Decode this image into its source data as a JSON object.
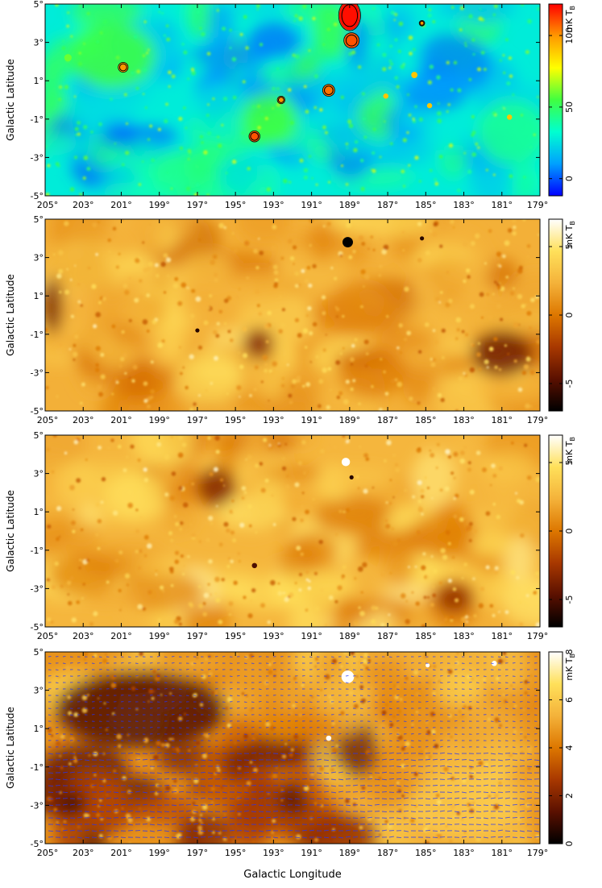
{
  "chart_data": [
    {
      "type": "heatmap",
      "colormap": "rainbow",
      "colors": [
        "#0000ff",
        "#00a0ff",
        "#00ffd0",
        "#40ff40",
        "#ffff00",
        "#ff9900",
        "#ff0000"
      ],
      "xlabel": "",
      "ylabel": "Galactic Latitude",
      "xlim": [
        205,
        179
      ],
      "ylim": [
        -5,
        5
      ],
      "x_ticks": [
        "205°",
        "203°",
        "201°",
        "199°",
        "197°",
        "195°",
        "193°",
        "191°",
        "189°",
        "187°",
        "185°",
        "183°",
        "181°",
        "179°"
      ],
      "y_ticks": [
        "-5°",
        "-3°",
        "-1°",
        "1°",
        "3°",
        "5°"
      ],
      "colorbar": {
        "label": "mK T",
        "label_sub": "B",
        "range": [
          -12,
          122
        ],
        "ticks": [
          {
            "value": 100,
            "label": "100"
          },
          {
            "value": 50,
            "label": "50"
          },
          {
            "value": 0,
            "label": "0"
          }
        ]
      },
      "sources": [
        {
          "l": 189.0,
          "b": 4.4,
          "size": 1.0,
          "value": 120
        },
        {
          "l": 188.9,
          "b": 3.1,
          "size": 0.7,
          "value": 110
        },
        {
          "l": 200.9,
          "b": 1.7,
          "size": 0.45,
          "value": 100
        },
        {
          "l": 194.0,
          "b": -1.9,
          "size": 0.5,
          "value": 110
        },
        {
          "l": 190.1,
          "b": 0.5,
          "size": 0.55,
          "value": 105
        },
        {
          "l": 192.6,
          "b": 0.0,
          "size": 0.35,
          "value": 100
        },
        {
          "l": 203.8,
          "b": 2.2,
          "size": 0.35,
          "value": 60
        },
        {
          "l": 185.2,
          "b": 4.0,
          "size": 0.25,
          "value": 100
        },
        {
          "l": 185.6,
          "b": 1.3,
          "size": 0.3,
          "value": 90
        },
        {
          "l": 184.8,
          "b": -0.3,
          "size": 0.25,
          "value": 90
        },
        {
          "l": 187.1,
          "b": 0.2,
          "size": 0.25,
          "value": 90
        },
        {
          "l": 180.6,
          "b": -0.9,
          "size": 0.25,
          "value": 90
        }
      ],
      "extended": [
        {
          "l": 201.5,
          "b": 2.3,
          "rl": 2.3,
          "rb": 1.7,
          "value": 55
        },
        {
          "l": 180.5,
          "b": -1.7,
          "rl": 1.8,
          "rb": 1.7,
          "value": 42
        },
        {
          "l": 193.2,
          "b": -1.0,
          "rl": 1.5,
          "rb": 1.4,
          "value": 55
        },
        {
          "l": 196.3,
          "b": -2.8,
          "rl": 0.8,
          "rb": 0.6,
          "value": 45
        },
        {
          "l": 204.7,
          "b": 1.0,
          "rl": 0.6,
          "rb": 1.5,
          "value": 50
        }
      ]
    },
    {
      "type": "heatmap",
      "colormap": "heat",
      "colors": [
        "#000000",
        "#5a1000",
        "#a83800",
        "#dd7700",
        "#f4b23a",
        "#ffe05a",
        "#ffffff"
      ],
      "xlabel": "",
      "ylabel": "Galactic Latitude",
      "xlim": [
        205,
        179
      ],
      "ylim": [
        -5,
        5
      ],
      "x_ticks": [
        "205°",
        "203°",
        "201°",
        "199°",
        "197°",
        "195°",
        "193°",
        "191°",
        "189°",
        "187°",
        "185°",
        "183°",
        "181°",
        "179°"
      ],
      "y_ticks": [
        "-5°",
        "-3°",
        "-1°",
        "1°",
        "3°",
        "5°"
      ],
      "colorbar": {
        "label": "mK T",
        "label_sub": "B",
        "range": [
          -7,
          7
        ],
        "ticks": [
          {
            "value": 5,
            "label": "5"
          },
          {
            "value": 0,
            "label": "0"
          },
          {
            "value": -5,
            "label": "-5"
          }
        ]
      },
      "sources": [
        {
          "l": 189.1,
          "b": 3.8,
          "size": 0.5,
          "value": -7
        },
        {
          "l": 185.2,
          "b": 4.0,
          "size": 0.2,
          "value": -6
        },
        {
          "l": 197.0,
          "b": -0.8,
          "size": 0.2,
          "value": -6
        }
      ],
      "extended": [
        {
          "l": 181.0,
          "b": -2.0,
          "rl": 1.6,
          "rb": 1.2,
          "value": -4
        },
        {
          "l": 193.8,
          "b": -1.5,
          "rl": 0.8,
          "rb": 0.8,
          "value": -3.5
        },
        {
          "l": 204.6,
          "b": 0.5,
          "rl": 0.5,
          "rb": 1.5,
          "value": -4
        }
      ]
    },
    {
      "type": "heatmap",
      "colormap": "heat",
      "colors": [
        "#000000",
        "#5a1000",
        "#a83800",
        "#dd7700",
        "#f4b23a",
        "#ffe05a",
        "#ffffff"
      ],
      "xlabel": "",
      "ylabel": "Galactic Latitude",
      "xlim": [
        205,
        179
      ],
      "ylim": [
        -5,
        5
      ],
      "x_ticks": [
        "205°",
        "203°",
        "201°",
        "199°",
        "197°",
        "195°",
        "193°",
        "191°",
        "189°",
        "187°",
        "185°",
        "183°",
        "181°",
        "179°"
      ],
      "y_ticks": [
        "-5°",
        "-3°",
        "-1°",
        "1°",
        "3°",
        "5°"
      ],
      "colorbar": {
        "label": "mK T",
        "label_sub": "B",
        "range": [
          -7,
          7
        ],
        "ticks": [
          {
            "value": 5,
            "label": "5"
          },
          {
            "value": 0,
            "label": "0"
          },
          {
            "value": -5,
            "label": "-5"
          }
        ]
      },
      "sources": [
        {
          "l": 189.2,
          "b": 3.6,
          "size": 0.4,
          "value": 7
        },
        {
          "l": 188.9,
          "b": 2.8,
          "size": 0.2,
          "value": -6
        },
        {
          "l": 194.0,
          "b": -1.8,
          "size": 0.25,
          "value": -5
        }
      ],
      "extended": [
        {
          "l": 196.0,
          "b": 2.3,
          "rl": 1.0,
          "rb": 1.0,
          "value": -3.5
        },
        {
          "l": 183.5,
          "b": -3.5,
          "rl": 1.0,
          "rb": 0.8,
          "value": -3
        }
      ]
    },
    {
      "type": "heatmap",
      "colormap": "heat",
      "colors": [
        "#000000",
        "#5a1000",
        "#a83800",
        "#dd7700",
        "#f4b23a",
        "#ffe05a",
        "#ffffff"
      ],
      "xlabel": "Galactic Longitude",
      "ylabel": "Galactic Latitude",
      "xlim": [
        205,
        179
      ],
      "ylim": [
        -5,
        5
      ],
      "x_ticks": [
        "205°",
        "203°",
        "201°",
        "199°",
        "197°",
        "195°",
        "193°",
        "191°",
        "189°",
        "187°",
        "185°",
        "183°",
        "181°",
        "179°"
      ],
      "y_ticks": [
        "-5°",
        "-3°",
        "-1°",
        "1°",
        "3°",
        "5°"
      ],
      "colorbar": {
        "label": "mK T",
        "label_sub": "B",
        "range": [
          0,
          8
        ],
        "ticks": [
          {
            "value": 8,
            "label": "8"
          },
          {
            "value": 6,
            "label": "6"
          },
          {
            "value": 4,
            "label": "4"
          },
          {
            "value": 2,
            "label": "2"
          },
          {
            "value": 0,
            "label": "0"
          }
        ]
      },
      "vectors": {
        "color": "#2233ff",
        "shown": true
      },
      "sources": [
        {
          "l": 189.1,
          "b": 3.7,
          "size": 0.6,
          "value": 8
        },
        {
          "l": 184.9,
          "b": 4.3,
          "size": 0.2,
          "value": 8
        },
        {
          "l": 181.4,
          "b": 4.4,
          "size": 0.25,
          "value": 8
        },
        {
          "l": 190.1,
          "b": 0.5,
          "size": 0.25,
          "value": 8
        }
      ],
      "extended": [
        {
          "l": 200.0,
          "b": 2.0,
          "rl": 4.5,
          "rb": 2.0,
          "value": 1.2
        },
        {
          "l": 203.5,
          "b": -2.9,
          "rl": 0.6,
          "rb": 0.6,
          "value": 0.8
        },
        {
          "l": 183.0,
          "b": -3.0,
          "rl": 3.0,
          "rb": 1.8,
          "value": 6
        }
      ]
    }
  ]
}
